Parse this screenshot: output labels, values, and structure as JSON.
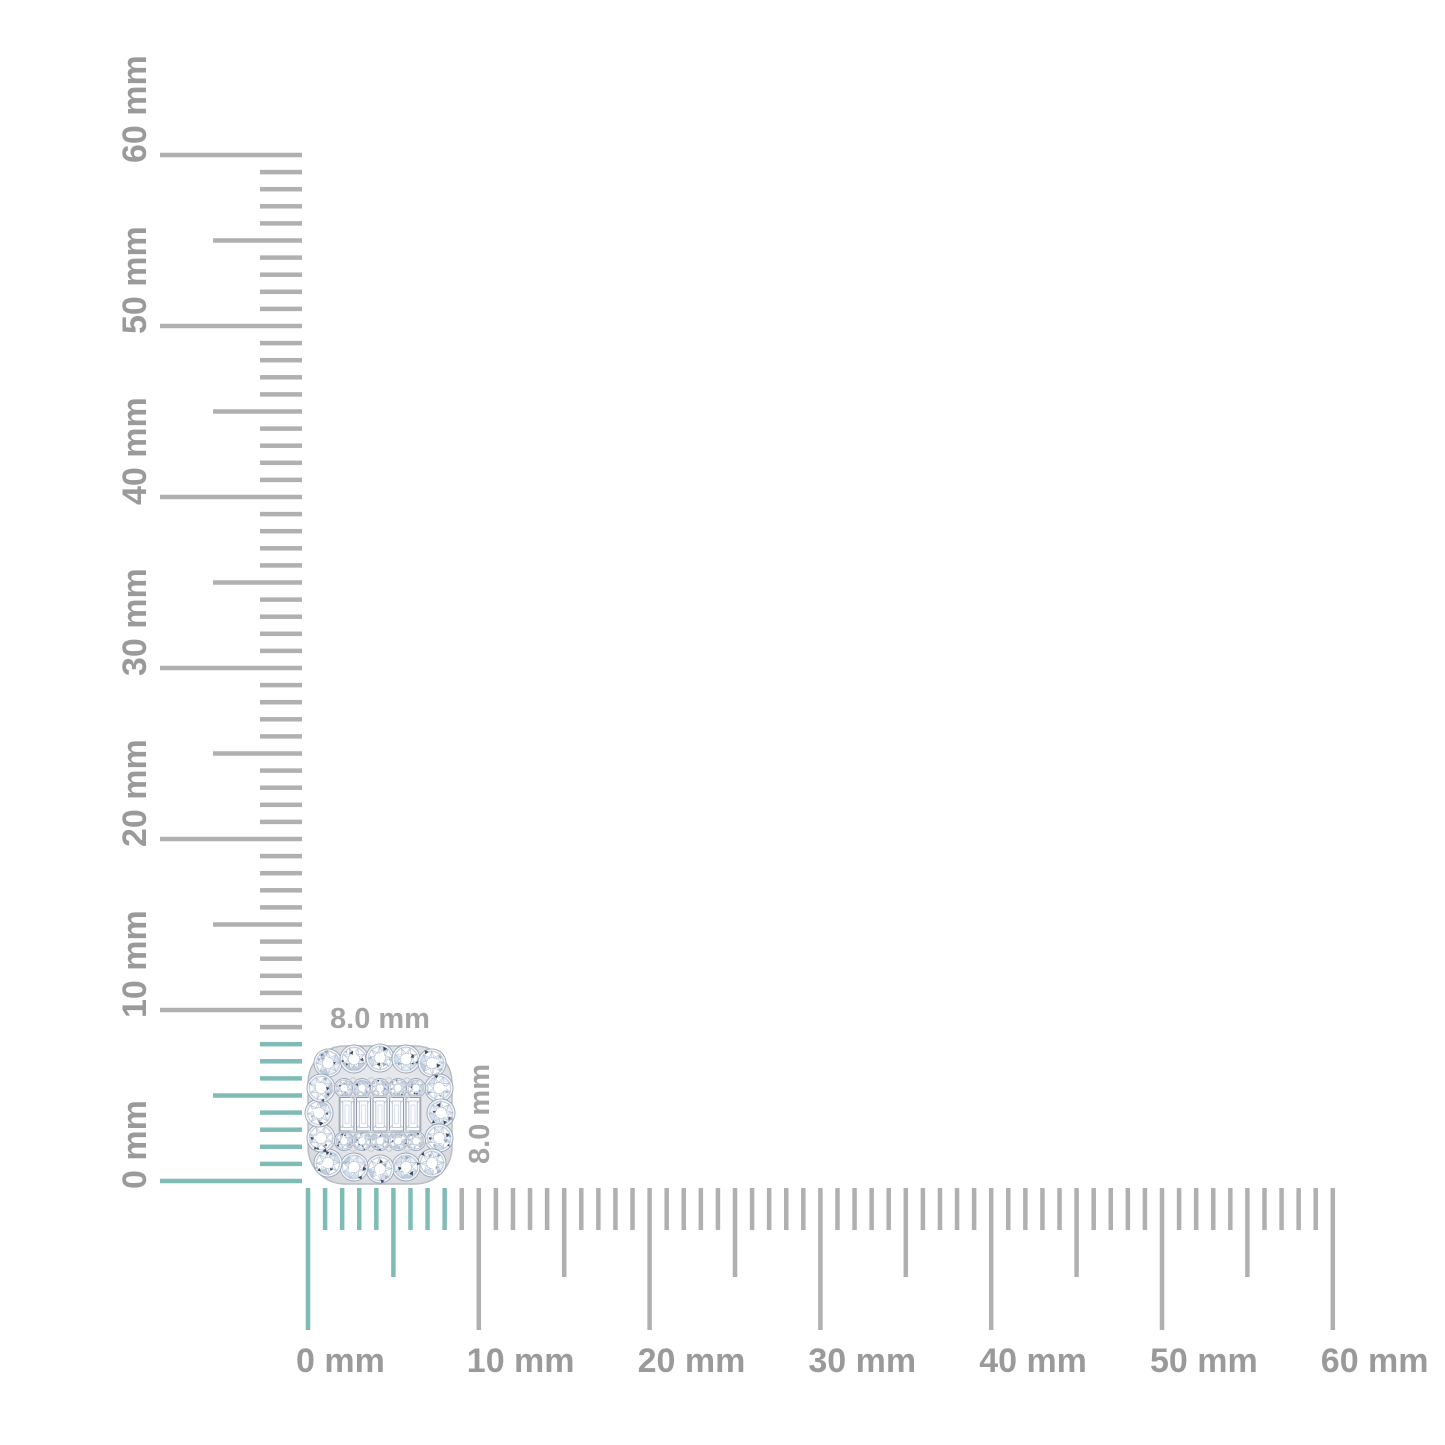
{
  "rulers": {
    "unit": "mm",
    "max_mm": 60,
    "minor_step_mm": 1,
    "mid_step_mm": 5,
    "major_step_mm": 10,
    "highlight_extent_mm": 8,
    "vertical": {
      "labels": [
        "0 mm",
        "10 mm",
        "20 mm",
        "30 mm",
        "40 mm",
        "50 mm",
        "60 mm"
      ]
    },
    "horizontal": {
      "labels": [
        "0 mm",
        "10 mm",
        "20 mm",
        "30 mm",
        "40 mm",
        "50 mm",
        "60 mm"
      ]
    }
  },
  "measurements": {
    "width_label": "8.0 mm",
    "height_label": "8.0 mm"
  },
  "product": {
    "type": "diamond-cluster-cushion-stud",
    "outer_halo_round_stones": 16,
    "inner_round_stones": 10,
    "baguette_stones": 5
  },
  "colors": {
    "tick_gray": "#b0b0b0",
    "label_gray": "#9a9a9a",
    "highlight_teal": "#7fbcb6",
    "metal_light": "#eff1f4",
    "metal_dark": "#d3d6db",
    "diamond_outline": "#99a4b4"
  }
}
